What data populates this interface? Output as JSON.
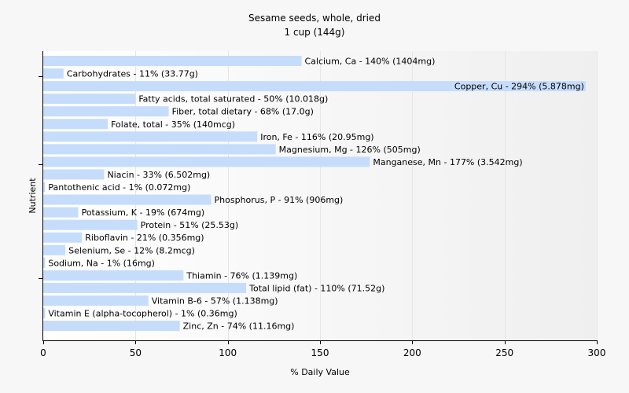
{
  "chart_data": {
    "type": "bar",
    "orientation": "horizontal",
    "title": "Sesame seeds, whole, dried",
    "subtitle": "1 cup (144g)",
    "xlabel": "% Daily Value",
    "ylabel": "Nutrient",
    "xlim": [
      0,
      300
    ],
    "xticks": [
      0,
      50,
      100,
      150,
      200,
      250,
      300
    ],
    "bar_color": "#c6dcfb",
    "grid": true,
    "categories": [
      "Calcium, Ca",
      "Carbohydrates",
      "Copper, Cu",
      "Fatty acids, total saturated",
      "Fiber, total dietary",
      "Folate, total",
      "Iron, Fe",
      "Magnesium, Mg",
      "Manganese, Mn",
      "Niacin",
      "Pantothenic acid",
      "Phosphorus, P",
      "Potassium, K",
      "Protein",
      "Riboflavin",
      "Selenium, Se",
      "Sodium, Na",
      "Thiamin",
      "Total lipid (fat)",
      "Vitamin B-6",
      "Vitamin E (alpha-tocopherol)",
      "Zinc, Zn"
    ],
    "values": [
      140,
      11,
      294,
      50,
      68,
      35,
      116,
      126,
      177,
      33,
      1,
      91,
      19,
      51,
      21,
      12,
      1,
      76,
      110,
      57,
      1,
      74
    ],
    "labels": [
      "Calcium, Ca - 140% (1404mg)",
      "Carbohydrates - 11% (33.77g)",
      "Copper, Cu - 294% (5.878mg)",
      "Fatty acids, total saturated - 50% (10.018g)",
      "Fiber, total dietary - 68% (17.0g)",
      "Folate, total - 35% (140mcg)",
      "Iron, Fe - 116% (20.95mg)",
      "Magnesium, Mg - 126% (505mg)",
      "Manganese, Mn - 177% (3.542mg)",
      "Niacin - 33% (6.502mg)",
      "Pantothenic acid - 1% (0.072mg)",
      "Phosphorus, P - 91% (906mg)",
      "Potassium, K - 19% (674mg)",
      "Protein - 51% (25.53g)",
      "Riboflavin - 21% (0.356mg)",
      "Selenium, Se - 12% (8.2mcg)",
      "Sodium, Na - 1% (16mg)",
      "Thiamin - 76% (1.139mg)",
      "Total lipid (fat) - 110% (71.52g)",
      "Vitamin B-6 - 57% (1.138mg)",
      "Vitamin E (alpha-tocopherol) - 1% (0.36mg)",
      "Zinc, Zn - 74% (11.16mg)"
    ]
  }
}
